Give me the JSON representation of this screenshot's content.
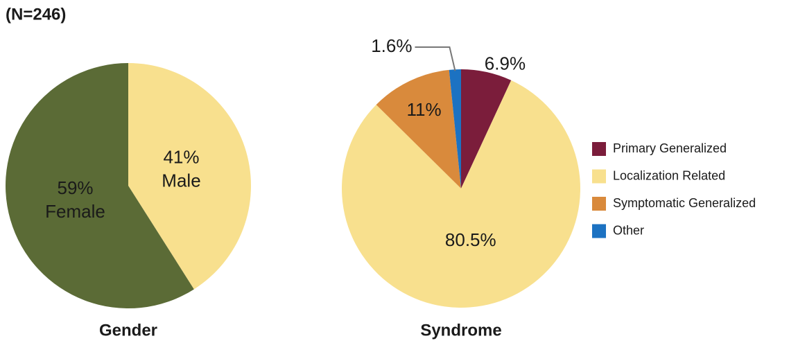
{
  "title": "(N=246)",
  "chart_data": [
    {
      "type": "pie",
      "title": "Gender",
      "categories": [
        "Male",
        "Female"
      ],
      "values": [
        41,
        59
      ],
      "value_labels": [
        "41%",
        "59%"
      ],
      "colors": [
        "#f8e08e",
        "#5b6b36"
      ],
      "legend": false
    },
    {
      "type": "pie",
      "title": "Syndrome",
      "categories": [
        "Primary Generalized",
        "Localization Related",
        "Symptomatic Generalized",
        "Other"
      ],
      "values": [
        6.9,
        80.5,
        11,
        1.6
      ],
      "value_labels": [
        "6.9%",
        "80.5%",
        "11%",
        "1.6%"
      ],
      "colors": [
        "#7b1d3b",
        "#f8e08e",
        "#d98a3c",
        "#1c72c2"
      ],
      "legend": "right"
    }
  ]
}
